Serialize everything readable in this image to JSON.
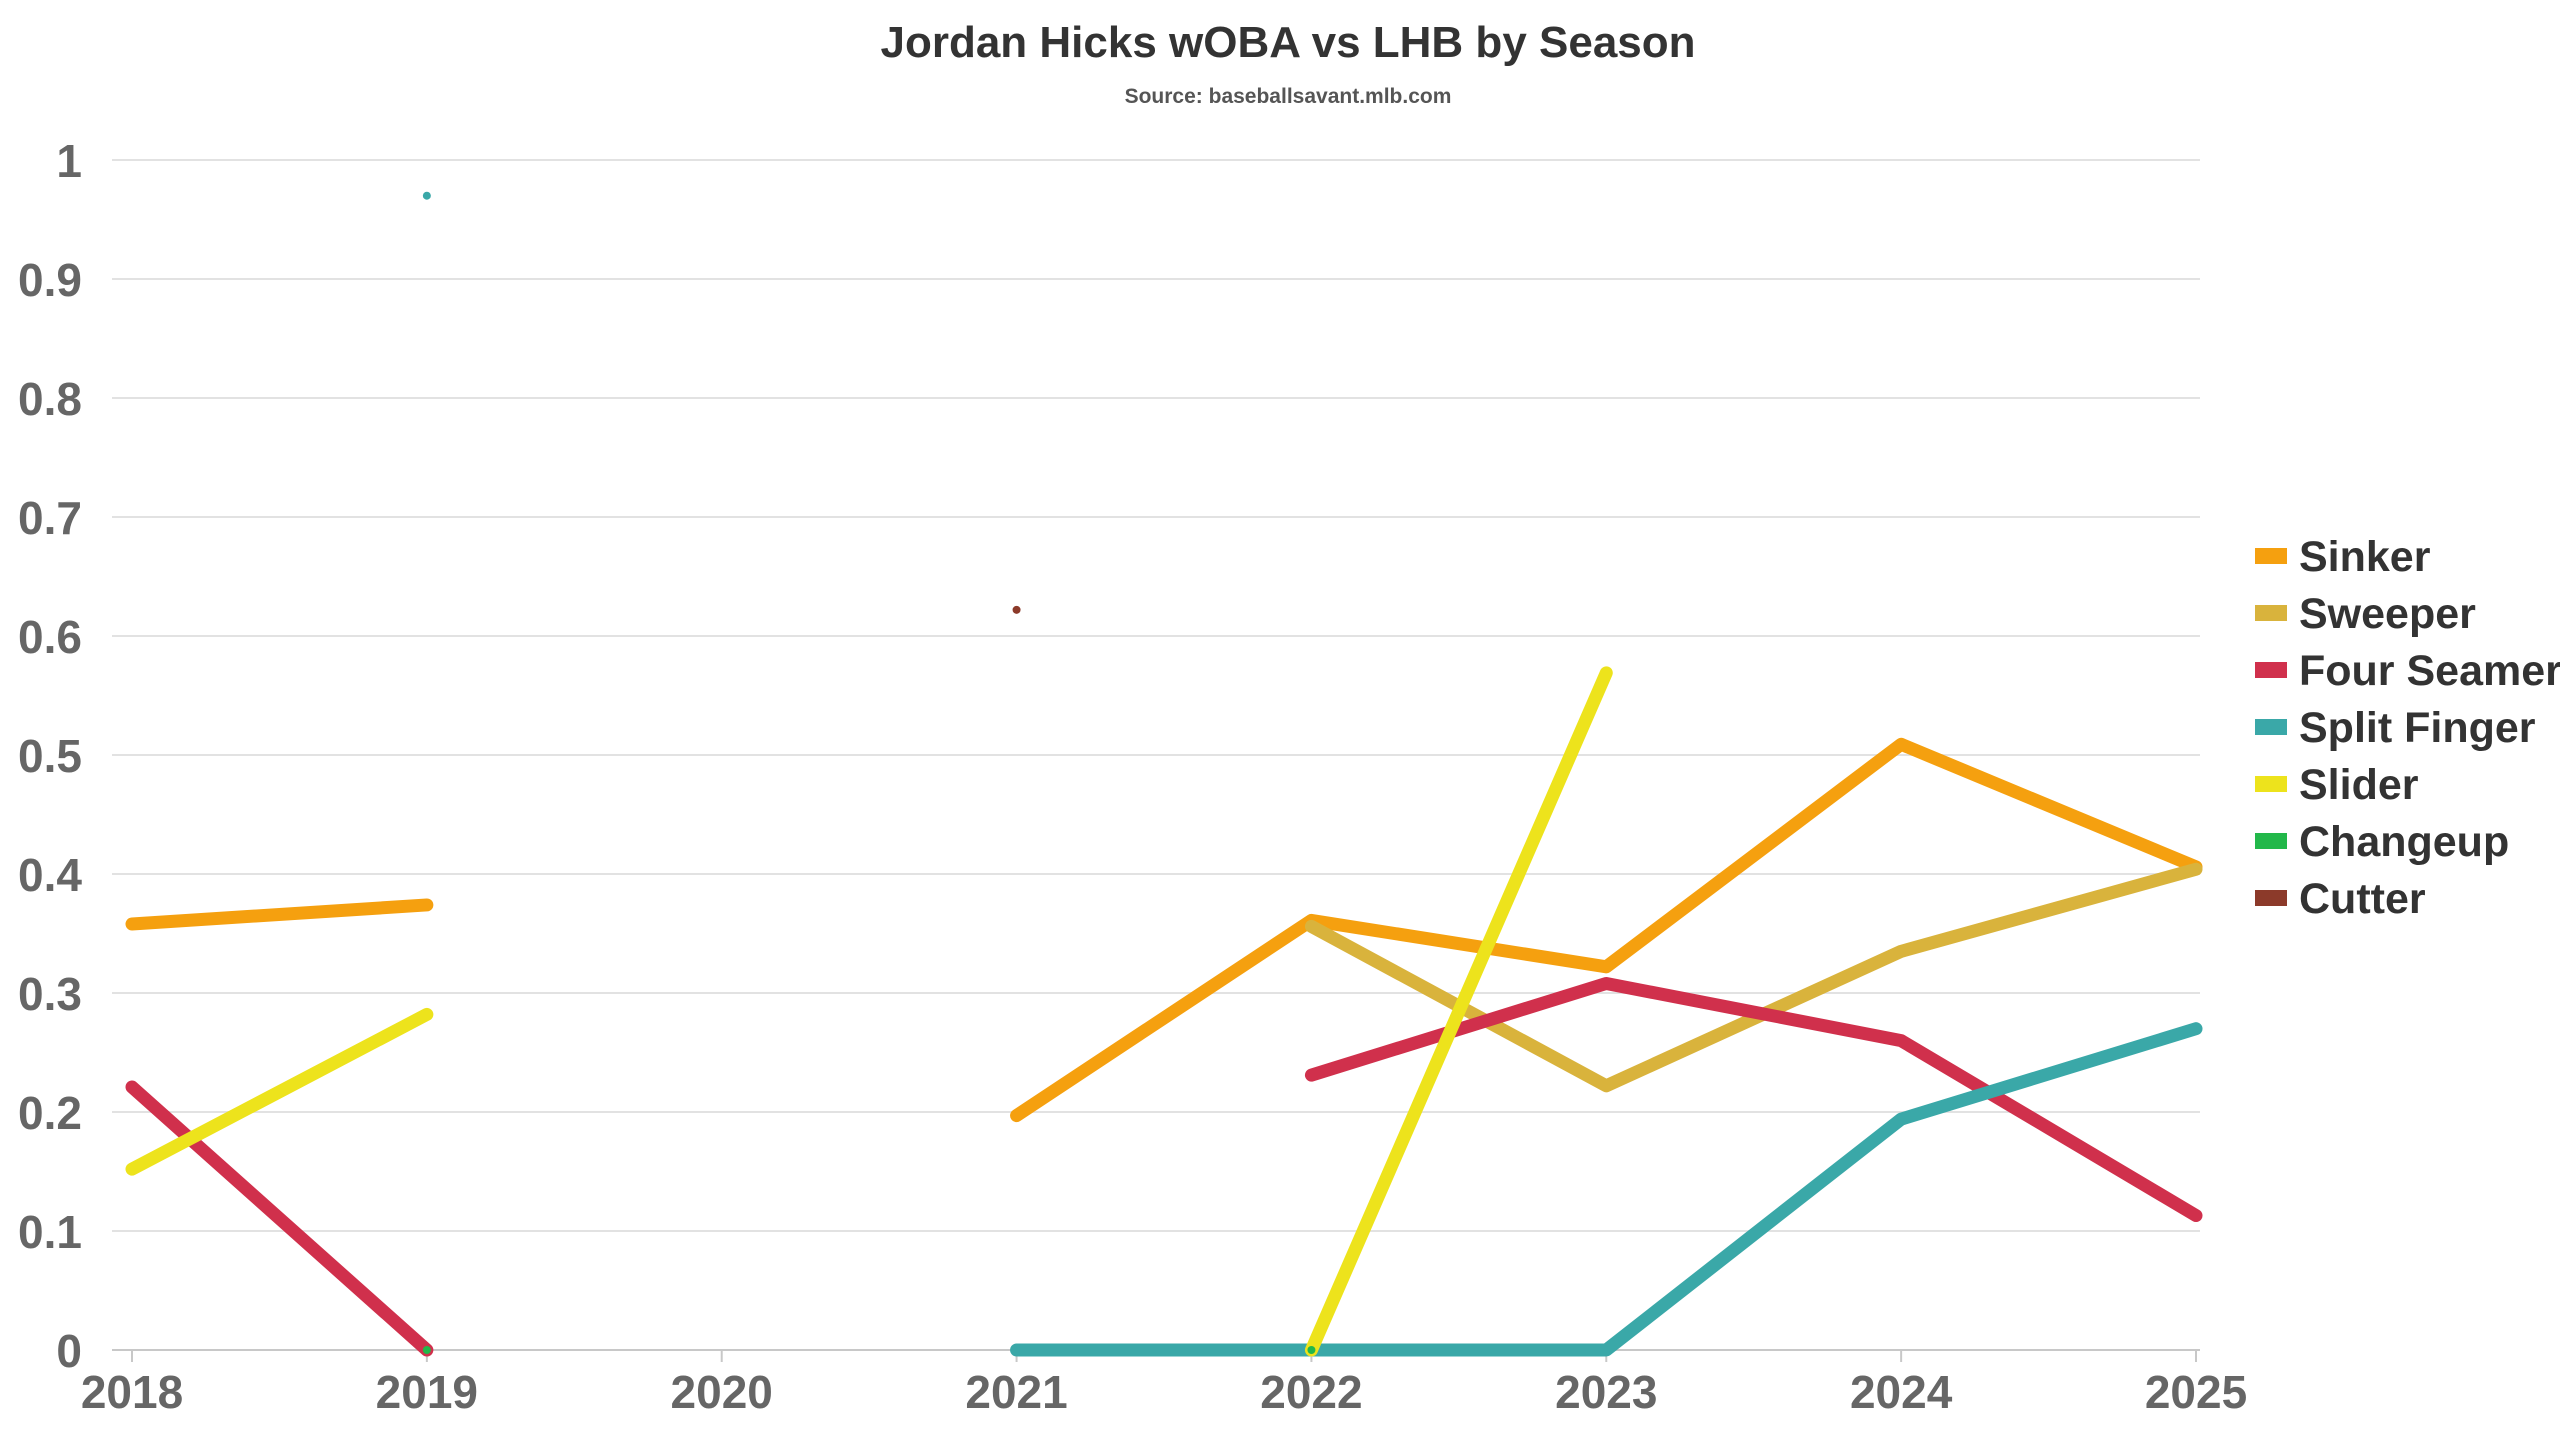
{
  "chart_data": {
    "type": "line",
    "title": "Jordan Hicks wOBA vs LHB by Season",
    "subtitle": "Source: baseballsavant.mlb.com",
    "xlabel": "",
    "ylabel": "",
    "x": [
      "2018",
      "2019",
      "2020",
      "2021",
      "2022",
      "2023",
      "2024",
      "2025"
    ],
    "ylim": [
      0,
      1
    ],
    "yticks": [
      "0",
      "0.1",
      "0.2",
      "0.3",
      "0.4",
      "0.5",
      "0.6",
      "0.7",
      "0.8",
      "0.9",
      "1"
    ],
    "grid": true,
    "legend_position": "right",
    "series": [
      {
        "name": "Sinker",
        "color": "#F5A00F",
        "values": [
          0.358,
          0.374,
          null,
          0.197,
          0.361,
          0.322,
          0.509,
          0.406
        ]
      },
      {
        "name": "Sweeper",
        "color": "#D9B33C",
        "values": [
          null,
          null,
          null,
          null,
          0.356,
          0.222,
          0.335,
          0.404
        ]
      },
      {
        "name": "Four Seamer",
        "color": "#D0304C",
        "values": [
          0.221,
          0.0,
          null,
          null,
          0.231,
          0.308,
          0.26,
          0.113
        ]
      },
      {
        "name": "Split Finger",
        "color": "#3AA8A8",
        "values": [
          null,
          0.97,
          null,
          0.0,
          0.0,
          0.0,
          0.194,
          0.27
        ]
      },
      {
        "name": "Slider",
        "color": "#EDE31C",
        "values": [
          0.152,
          0.282,
          null,
          null,
          0.0,
          0.569,
          null,
          null
        ]
      },
      {
        "name": "Changeup",
        "color": "#22B84A",
        "values": [
          null,
          0.0,
          null,
          null,
          0.0,
          null,
          null,
          null
        ]
      },
      {
        "name": "Cutter",
        "color": "#8C3A2A",
        "values": [
          null,
          null,
          null,
          0.622,
          null,
          null,
          null,
          null
        ]
      }
    ]
  }
}
